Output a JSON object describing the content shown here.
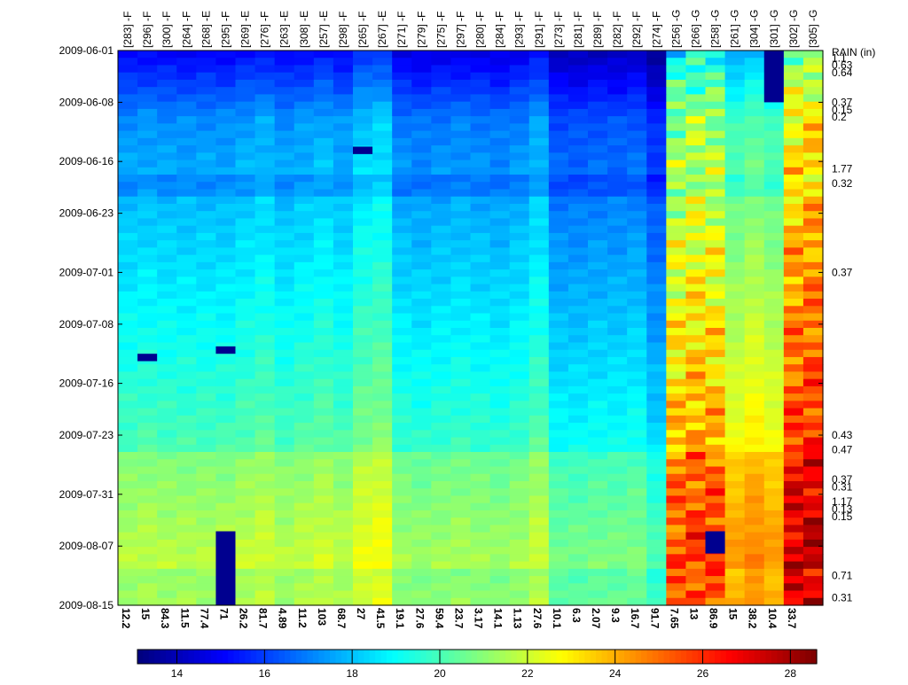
{
  "chart_data": {
    "type": "heatmap",
    "columns": [
      {
        "label": "[283] -F",
        "bottom": "12.2"
      },
      {
        "label": "[296] -F",
        "bottom": "15"
      },
      {
        "label": "[300] -F",
        "bottom": "84.3"
      },
      {
        "label": "[264] -F",
        "bottom": "11.5"
      },
      {
        "label": "[268] -E",
        "bottom": "77.4"
      },
      {
        "label": "[295] -F",
        "bottom": "71"
      },
      {
        "label": "[269] -E",
        "bottom": "26.2"
      },
      {
        "label": "[276] -F",
        "bottom": "81.7"
      },
      {
        "label": "[263] -E",
        "bottom": "4.89"
      },
      {
        "label": "[308] -E",
        "bottom": "11.2"
      },
      {
        "label": "[257] -E",
        "bottom": "103"
      },
      {
        "label": "[298] -F",
        "bottom": "68.7"
      },
      {
        "label": "[265] -F",
        "bottom": "27"
      },
      {
        "label": "[267] -E",
        "bottom": "41.5"
      },
      {
        "label": "[271] -F",
        "bottom": "19.1"
      },
      {
        "label": "[279] -F",
        "bottom": "27.6"
      },
      {
        "label": "[275] -F",
        "bottom": "59.4"
      },
      {
        "label": "[297] -F",
        "bottom": "23.7"
      },
      {
        "label": "[280] -F",
        "bottom": "3.17"
      },
      {
        "label": "[284] -F",
        "bottom": "14.1"
      },
      {
        "label": "[293] -F",
        "bottom": "1.13"
      },
      {
        "label": "[291] -F",
        "bottom": "27.6"
      },
      {
        "label": "[273] -F",
        "bottom": "10.1"
      },
      {
        "label": "[281] -F",
        "bottom": "6.3"
      },
      {
        "label": "[289] -F",
        "bottom": "2.07"
      },
      {
        "label": "[282] -F",
        "bottom": "9.3"
      },
      {
        "label": "[292] -F",
        "bottom": "16.7"
      },
      {
        "label": "[274] -F",
        "bottom": "91.7"
      },
      {
        "label": "[256] -G",
        "bottom": "7.65"
      },
      {
        "label": "[266] -G",
        "bottom": "13"
      },
      {
        "label": "[258] -G",
        "bottom": "86.9"
      },
      {
        "label": "[261] -G",
        "bottom": "15"
      },
      {
        "label": "[304] -G",
        "bottom": "38.2"
      },
      {
        "label": "[301] -G",
        "bottom": "10.4"
      },
      {
        "label": "[302] -G",
        "bottom": "33.7"
      },
      {
        "label": "[305] -G",
        "bottom": ""
      }
    ],
    "column_base_values": [
      16.6,
      16.7,
      16.6,
      16.6,
      16.6,
      16.6,
      16.8,
      17.0,
      16.6,
      16.8,
      17.0,
      16.7,
      17.4,
      17.6,
      16.3,
      16.2,
      16.3,
      16.4,
      16.3,
      16.2,
      16.4,
      16.9,
      15.6,
      15.6,
      15.7,
      15.7,
      15.8,
      15.0,
      20.4,
      20.8,
      20.7,
      19.2,
      19.6,
      19.2,
      22.3,
      22.6
    ],
    "date_ticks": [
      "2009-06-01",
      "2009-06-08",
      "2009-06-16",
      "2009-06-23",
      "2009-07-01",
      "2009-07-08",
      "2009-07-16",
      "2009-07-23",
      "2009-07-31",
      "2009-08-07",
      "2009-08-15"
    ],
    "date_start": "2009-06-01",
    "date_end": "2009-08-15",
    "rain_label": "RAIN (in)",
    "rain": [
      {
        "date": "2009-06-02",
        "value": "1.1"
      },
      {
        "date": "2009-06-03",
        "value": "0.63"
      },
      {
        "date": "2009-06-04",
        "value": "0.64"
      },
      {
        "date": "2009-06-08",
        "value": "0.37"
      },
      {
        "date": "2009-06-09",
        "value": "0.15"
      },
      {
        "date": "2009-06-10",
        "value": "0.2"
      },
      {
        "date": "2009-06-17",
        "value": "1.77"
      },
      {
        "date": "2009-06-19",
        "value": "0.32"
      },
      {
        "date": "2009-07-01",
        "value": "0.37"
      },
      {
        "date": "2009-07-23",
        "value": "0.43"
      },
      {
        "date": "2009-07-25",
        "value": "0.47"
      },
      {
        "date": "2009-07-29",
        "value": "0.37"
      },
      {
        "date": "2009-07-30",
        "value": "0.31"
      },
      {
        "date": "2009-08-01",
        "value": "1.17"
      },
      {
        "date": "2009-08-02",
        "value": "0.13"
      },
      {
        "date": "2009-08-03",
        "value": "0.15"
      },
      {
        "date": "2009-08-11",
        "value": "0.71"
      },
      {
        "date": "2009-08-14",
        "value": "0.31"
      }
    ],
    "colorbar": {
      "min": 13.1,
      "max": 28.6,
      "ticks": [
        14,
        16,
        18,
        20,
        22,
        24,
        26,
        28
      ],
      "colormap": "jet"
    },
    "missing_blocks": [
      {
        "column": "[296] -F",
        "from": "2009-07-12",
        "to": "2009-07-13"
      },
      {
        "column": "[295] -F",
        "from": "2009-07-11",
        "to": "2009-07-12"
      },
      {
        "column": "[295] -F",
        "from": "2009-08-05",
        "to": "2009-08-15"
      },
      {
        "column": "[301] -G",
        "from": "2009-06-01",
        "to": "2009-06-08"
      },
      {
        "column": "[258] -G",
        "from": "2009-08-05",
        "to": "2009-08-08"
      },
      {
        "column": "[265] -F",
        "from": "2009-06-14",
        "to": "2009-06-15"
      }
    ]
  }
}
